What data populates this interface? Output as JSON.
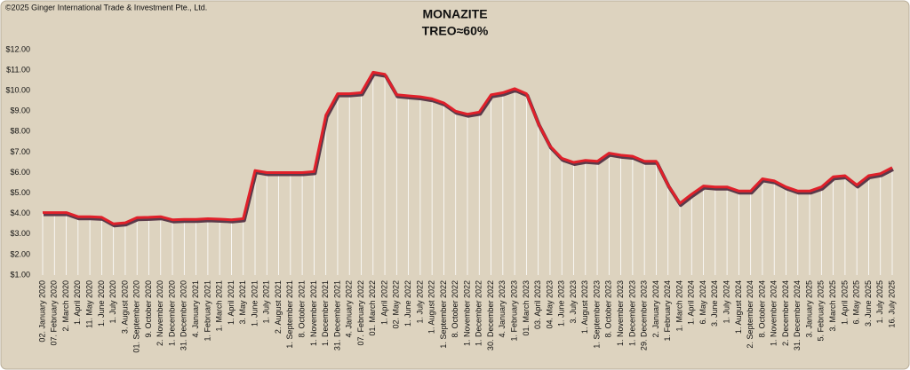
{
  "chart_data": {
    "type": "line",
    "title": "MONAZITE",
    "subtitle": "TREO≈60%",
    "copyright": "©2025 Ginger International Trade & Investment Pte., Ltd.",
    "color": "#e0202a",
    "shadow_color": "#5a3a4a",
    "drop_lines": true,
    "categories": [
      "02. January 2020",
      "07. February 2020",
      "2. March 2020",
      "1. April 2020",
      "11. May 2020",
      "1. June 2020",
      "1. July 2020",
      "3. August 2020",
      "01. September 2020",
      "9. October 2020",
      "2. November 2020",
      "1. December 2020",
      "31. December 2020",
      "4. January 2021",
      "1. February 2021",
      "1. March 2021",
      "1. April 2021",
      "3. May 2021",
      "1. June 2021",
      "1. July 2021",
      "2. August 2021",
      "1. September 2021",
      "8. October 2021",
      "1. November 2021",
      "1. December 2021",
      "31. December 2021",
      "4. January 2022",
      "07. February 2022",
      "01. March 2022",
      "1. April 2022",
      "02. May 2022",
      "1. June 2022",
      "1. July 2022",
      "1. August 2022",
      "1. September 2022",
      "8. October 2022",
      "1. November 2022",
      "1. December 2022",
      "30. December 2022",
      "4. January 2023",
      "1. February 2023",
      "01. March 2023",
      "03. April 2023",
      "04. May 2023",
      "1. June 2023",
      "3. July 2023",
      "1. August 2023",
      "1. September 2023",
      "8. October 2023",
      "1. November 2023",
      "1. December 2023",
      "29. December 2023",
      "2. January 2024",
      "1. February 2024",
      "1. March 2024",
      "1. April 2024",
      "6. May 2024",
      "3. June 2024",
      "1. July 2024",
      "1. August 2024",
      "2. September 2024",
      "8. October 2024",
      "1. November 2024",
      "2. December 2024",
      "31. December 2024",
      "3. January 2025",
      "5. February 2025",
      "3. March 2025",
      "1. April 2025",
      "6. May 2025",
      "3. June 2025",
      "1. July 2025",
      "16. July 2025"
    ],
    "values": [
      4.05,
      4.05,
      4.05,
      3.85,
      3.85,
      3.82,
      3.5,
      3.55,
      3.8,
      3.82,
      3.85,
      3.7,
      3.72,
      3.72,
      3.75,
      3.73,
      3.7,
      3.75,
      6.1,
      6.0,
      6.0,
      6.0,
      6.0,
      6.05,
      8.8,
      9.85,
      9.85,
      9.9,
      10.9,
      10.8,
      9.8,
      9.75,
      9.7,
      9.6,
      9.4,
      9.0,
      8.85,
      8.95,
      9.8,
      9.9,
      10.1,
      9.85,
      8.4,
      7.3,
      6.7,
      6.5,
      6.6,
      6.55,
      6.95,
      6.85,
      6.8,
      6.55,
      6.55,
      5.4,
      4.5,
      4.95,
      5.35,
      5.3,
      5.3,
      5.1,
      5.1,
      5.7,
      5.6,
      5.3,
      5.1,
      5.1,
      5.3,
      5.8,
      5.85,
      5.4,
      5.85,
      5.95,
      6.25
    ],
    "ylim": [
      1,
      12
    ],
    "yticks": [
      {
        "value": 1,
        "label": "$1.00"
      },
      {
        "value": 2,
        "label": "$2.00"
      },
      {
        "value": 3,
        "label": "$3.00"
      },
      {
        "value": 4,
        "label": "$4.00"
      },
      {
        "value": 5,
        "label": "$5.00"
      },
      {
        "value": 6,
        "label": "$6.00"
      },
      {
        "value": 7,
        "label": "$7.00"
      },
      {
        "value": 8,
        "label": "$8.00"
      },
      {
        "value": 9,
        "label": "$9.00"
      },
      {
        "value": 10,
        "label": "$10.00"
      },
      {
        "value": 11,
        "label": "$11.00"
      },
      {
        "value": 12,
        "label": "$12.00"
      }
    ]
  }
}
